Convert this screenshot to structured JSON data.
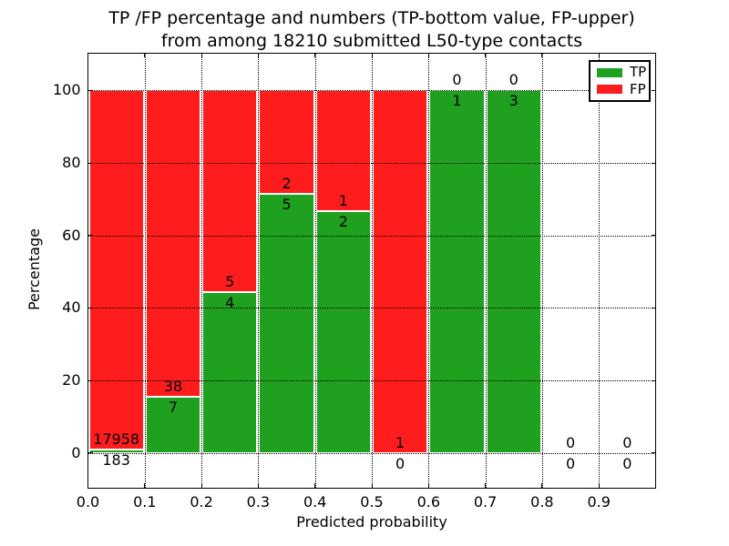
{
  "chart_data": {
    "type": "bar",
    "stacked": true,
    "title_line1": "TP /FP percentage and numbers (TP-bottom value, FP-upper)",
    "title_line2": "from among 18210 submitted L50-type contacts",
    "xlabel": "Predicted probability",
    "ylabel": "Percentage",
    "total_contacts": 18210,
    "xlim": [
      0.0,
      1.0
    ],
    "ylim": [
      0,
      100
    ],
    "bin_width": 0.1,
    "x_ticks": [
      {
        "value": 0.0,
        "label": "0.0"
      },
      {
        "value": 0.1,
        "label": "0.1"
      },
      {
        "value": 0.2,
        "label": "0.2"
      },
      {
        "value": 0.3,
        "label": "0.3"
      },
      {
        "value": 0.4,
        "label": "0.4"
      },
      {
        "value": 0.5,
        "label": "0.5"
      },
      {
        "value": 0.6,
        "label": "0.6"
      },
      {
        "value": 0.7,
        "label": "0.7"
      },
      {
        "value": 0.8,
        "label": "0.8"
      },
      {
        "value": 0.9,
        "label": "0.9"
      }
    ],
    "y_ticks": [
      {
        "value": 0,
        "label": "0"
      },
      {
        "value": 20,
        "label": "20"
      },
      {
        "value": 40,
        "label": "40"
      },
      {
        "value": 60,
        "label": "60"
      },
      {
        "value": 80,
        "label": "80"
      },
      {
        "value": 100,
        "label": "100"
      }
    ],
    "bins": [
      {
        "range": "0.0-0.1",
        "tp": 183,
        "fp": 17958,
        "tp_pct": 1.01,
        "fp_pct": 98.99
      },
      {
        "range": "0.1-0.2",
        "tp": 7,
        "fp": 38,
        "tp_pct": 15.56,
        "fp_pct": 84.44
      },
      {
        "range": "0.2-0.3",
        "tp": 4,
        "fp": 5,
        "tp_pct": 44.44,
        "fp_pct": 55.56
      },
      {
        "range": "0.3-0.4",
        "tp": 5,
        "fp": 2,
        "tp_pct": 71.43,
        "fp_pct": 28.57
      },
      {
        "range": "0.4-0.5",
        "tp": 2,
        "fp": 1,
        "tp_pct": 66.67,
        "fp_pct": 33.33
      },
      {
        "range": "0.5-0.6",
        "tp": 0,
        "fp": 1,
        "tp_pct": 0,
        "fp_pct": 100
      },
      {
        "range": "0.6-0.7",
        "tp": 1,
        "fp": 0,
        "tp_pct": 100,
        "fp_pct": 0
      },
      {
        "range": "0.7-0.8",
        "tp": 3,
        "fp": 0,
        "tp_pct": 100,
        "fp_pct": 0
      },
      {
        "range": "0.8-0.9",
        "tp": 0,
        "fp": 0,
        "tp_pct": 0,
        "fp_pct": 0
      },
      {
        "range": "0.9-1.0",
        "tp": 0,
        "fp": 0,
        "tp_pct": 0,
        "fp_pct": 0
      }
    ],
    "legend": {
      "position": "upper right",
      "entries": [
        {
          "label": "TP",
          "color": "#1fa11f"
        },
        {
          "label": "FP",
          "color": "#ff1c1c"
        }
      ]
    },
    "colors": {
      "tp": "#1fa11f",
      "fp": "#ff1c1c",
      "grid": "#000000",
      "text": "#000000",
      "background": "#ffffff",
      "bar_edge": "#ffffff"
    },
    "grid_style": "dotted"
  }
}
